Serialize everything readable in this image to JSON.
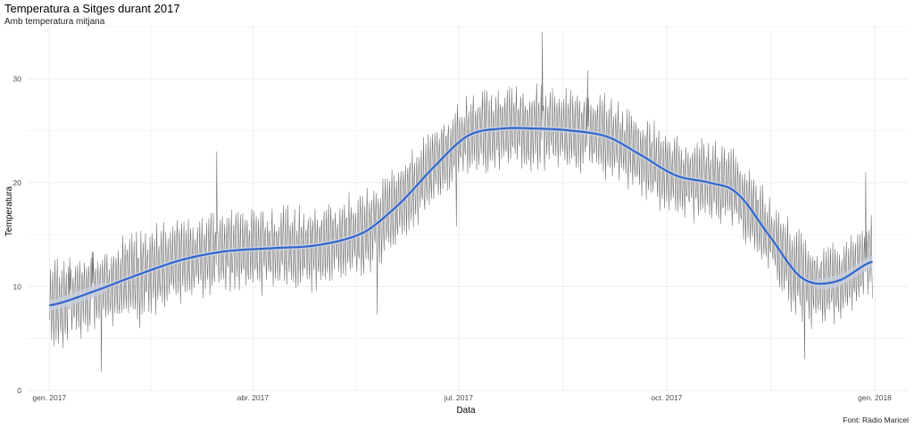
{
  "chart_data": {
    "type": "line",
    "title": "Temperatura a Sitges durant 2017",
    "subtitle": "Amb temperatura mitjana",
    "xlabel": "Data",
    "ylabel": "Temperatura",
    "caption": "Font: Ràdio Maricel",
    "x_ticks": [
      {
        "label": "gen. 2017",
        "date": "2017-01-01"
      },
      {
        "label": "abr. 2017",
        "date": "2017-04-01"
      },
      {
        "label": "jul. 2017",
        "date": "2017-07-01"
      },
      {
        "label": "oct. 2017",
        "date": "2017-10-01"
      },
      {
        "label": "gen. 2018",
        "date": "2018-01-01"
      }
    ],
    "y_ticks": [
      0,
      10,
      20,
      30
    ],
    "xlim": [
      "2016-12-22",
      "2018-01-16"
    ],
    "ylim": [
      0,
      35
    ],
    "grid": true,
    "legend": "none",
    "colors": {
      "raw": "#595959",
      "smooth": "#3366cc",
      "band": "#c8d0dd",
      "grid": "#ebebeb"
    },
    "series": [
      {
        "style": "raw-line",
        "approx_daily_extremes": [
          {
            "x": "2017-01-10",
            "y": 12.8
          },
          {
            "x": "2017-01-12",
            "y": 7.0
          },
          {
            "x": "2017-01-20",
            "y": 13.4
          },
          {
            "x": "2017-01-24",
            "y": 1.8
          },
          {
            "x": "2017-02-10",
            "y": 6.0
          },
          {
            "x": "2017-03-16",
            "y": 23.0
          },
          {
            "x": "2017-05-26",
            "y": 7.3
          },
          {
            "x": "2017-06-30",
            "y": 15.8
          },
          {
            "x": "2017-08-07",
            "y": 34.5
          },
          {
            "x": "2017-08-27",
            "y": 30.8
          },
          {
            "x": "2017-12-01",
            "y": 3.0
          },
          {
            "x": "2017-12-28",
            "y": 21.0
          }
        ]
      },
      {
        "style": "smooth",
        "points": [
          {
            "x": "2017-01-01",
            "y": 8.2
          },
          {
            "x": "2017-01-20",
            "y": 9.5
          },
          {
            "x": "2017-02-10",
            "y": 11.2
          },
          {
            "x": "2017-03-01",
            "y": 12.6
          },
          {
            "x": "2017-03-20",
            "y": 13.4
          },
          {
            "x": "2017-04-10",
            "y": 13.7
          },
          {
            "x": "2017-04-30",
            "y": 14.0
          },
          {
            "x": "2017-05-20",
            "y": 15.2
          },
          {
            "x": "2017-06-05",
            "y": 18.0
          },
          {
            "x": "2017-06-20",
            "y": 21.5
          },
          {
            "x": "2017-07-05",
            "y": 24.5
          },
          {
            "x": "2017-07-20",
            "y": 25.2
          },
          {
            "x": "2017-08-05",
            "y": 25.2
          },
          {
            "x": "2017-08-20",
            "y": 25.0
          },
          {
            "x": "2017-09-05",
            "y": 24.4
          },
          {
            "x": "2017-09-20",
            "y": 22.6
          },
          {
            "x": "2017-10-05",
            "y": 20.7
          },
          {
            "x": "2017-10-20",
            "y": 20.0
          },
          {
            "x": "2017-11-01",
            "y": 19.0
          },
          {
            "x": "2017-11-15",
            "y": 15.0
          },
          {
            "x": "2017-11-30",
            "y": 10.8
          },
          {
            "x": "2017-12-15",
            "y": 10.5
          },
          {
            "x": "2017-12-31",
            "y": 12.4
          }
        ]
      }
    ]
  }
}
